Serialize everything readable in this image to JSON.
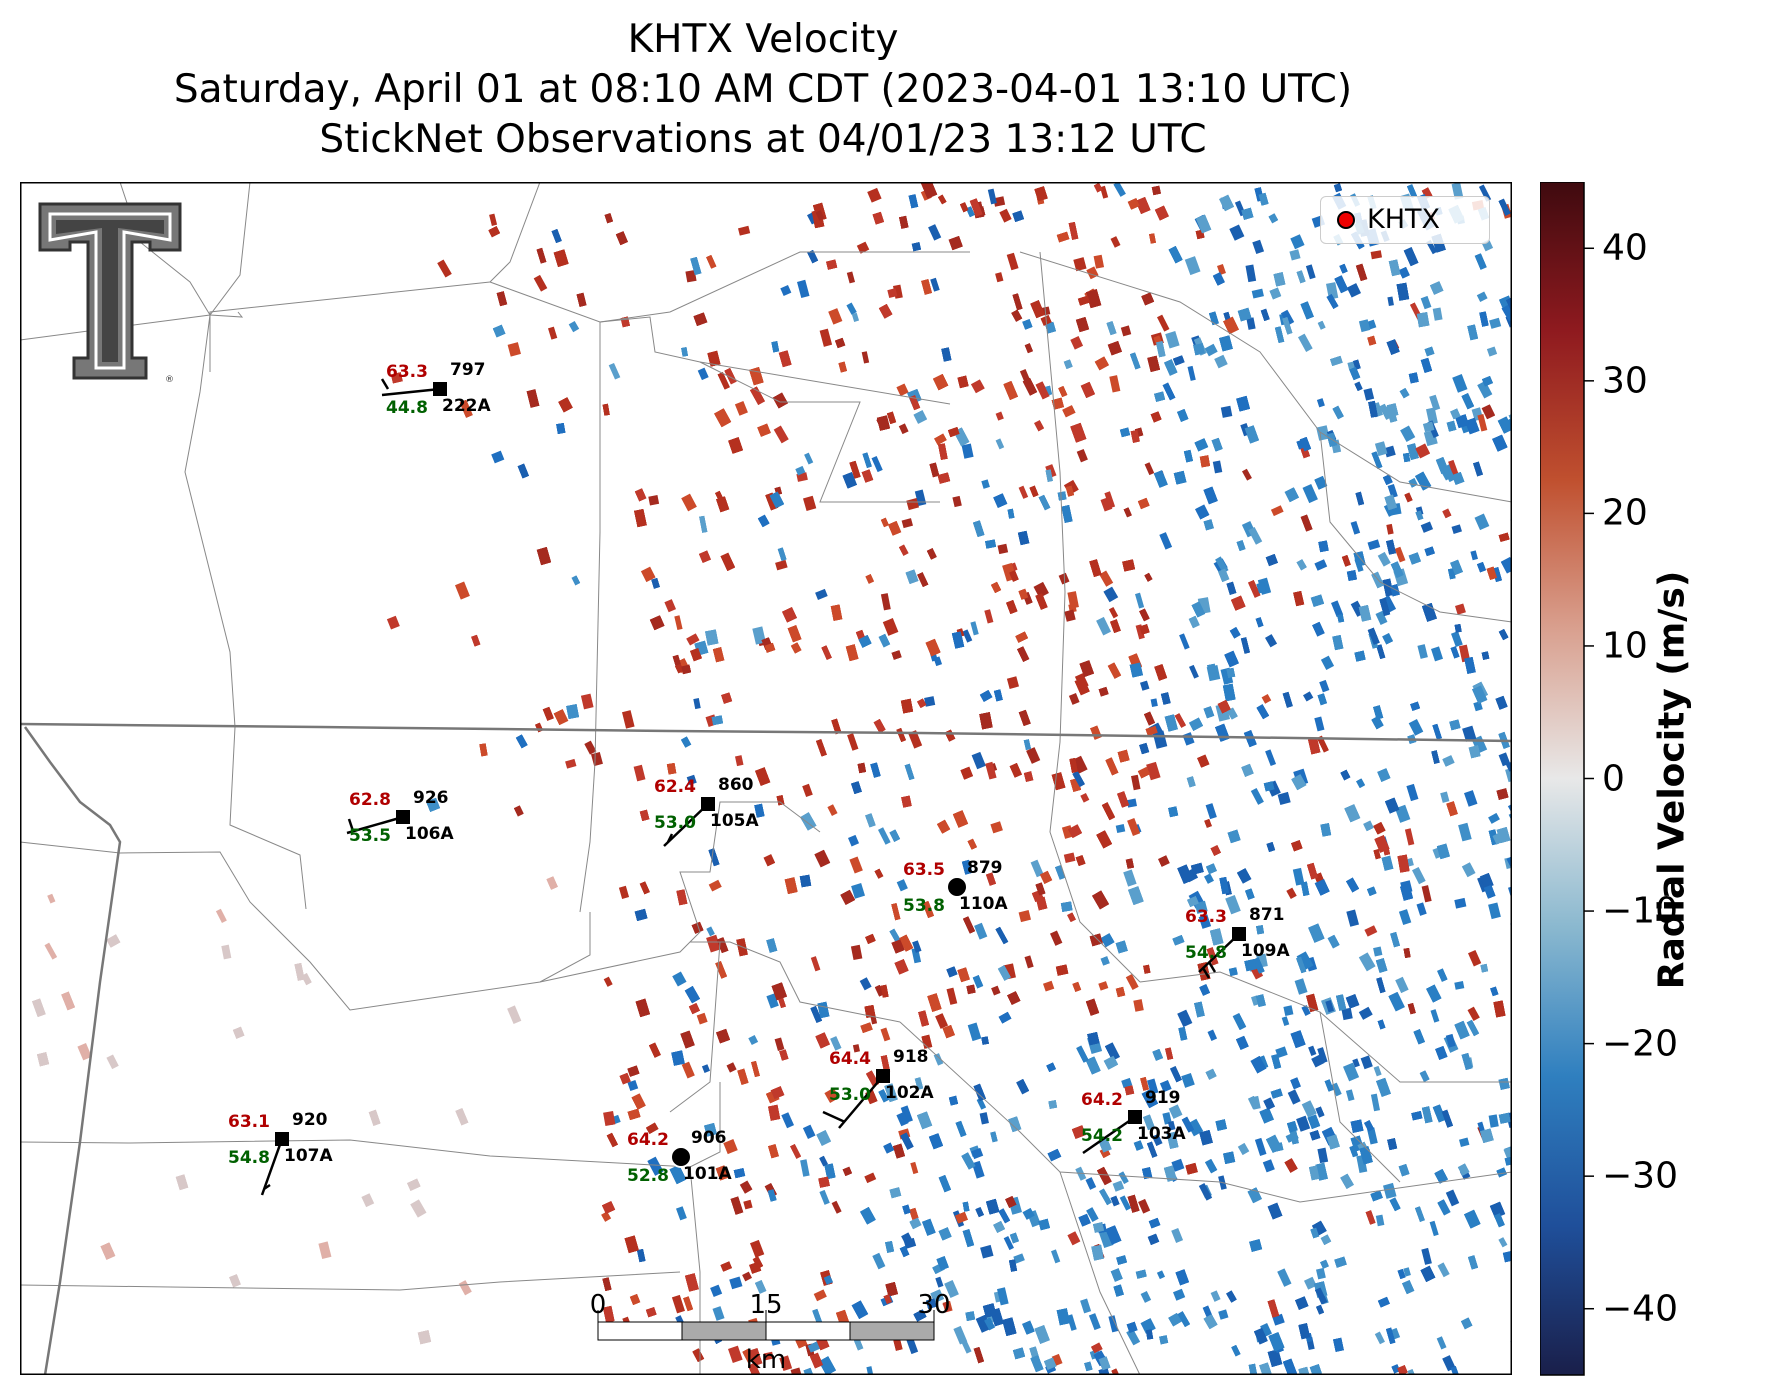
{
  "title": {
    "line1": "KHTX Velocity",
    "line2": "Saturday, April 01 at 08:10 AM CDT (2023-04-01 13:10 UTC)",
    "line3": "StickNet Observations at 04/01/23 13:12 UTC"
  },
  "legend": {
    "label": "KHTX"
  },
  "colorbar": {
    "label": "Radial Velocity (m/s)",
    "ticks": [
      "40",
      "30",
      "20",
      "10",
      "0",
      "−10",
      "−20",
      "−30",
      "−40"
    ],
    "tick_values": [
      40,
      30,
      20,
      10,
      0,
      -10,
      -20,
      -30,
      -40
    ],
    "range": [
      -45,
      45
    ],
    "colormap": [
      "#1a1f4a",
      "#1f4f9a",
      "#2f7fbf",
      "#8ab8cf",
      "#e8e8e8",
      "#d9a08f",
      "#c0502f",
      "#8f1a1f",
      "#3f0a0f"
    ]
  },
  "scale_bar": {
    "labels": [
      "0",
      "15",
      "30"
    ],
    "unit": "km"
  },
  "stations": [
    {
      "id": "222A",
      "temp": "63.3",
      "dew": "44.8",
      "pres": "797"
    },
    {
      "id": "106A",
      "temp": "62.8",
      "dew": "53.5",
      "pres": "926"
    },
    {
      "id": "105A",
      "temp": "62.4",
      "dew": "53.0",
      "pres": "860"
    },
    {
      "id": "110A",
      "temp": "63.5",
      "dew": "53.8",
      "pres": "879"
    },
    {
      "id": "109A",
      "temp": "63.3",
      "dew": "54.8",
      "pres": "871"
    },
    {
      "id": "102A",
      "temp": "64.4",
      "dew": "53.0",
      "pres": "918"
    },
    {
      "id": "103A",
      "temp": "64.2",
      "dew": "54.2",
      "pres": "919"
    },
    {
      "id": "107A",
      "temp": "63.1",
      "dew": "54.8",
      "pres": "920"
    },
    {
      "id": "101A",
      "temp": "64.2",
      "dew": "52.8",
      "pres": "906"
    }
  ],
  "colors": {
    "temp": "#b00000",
    "dew": "#006000",
    "pres": "#000000"
  }
}
